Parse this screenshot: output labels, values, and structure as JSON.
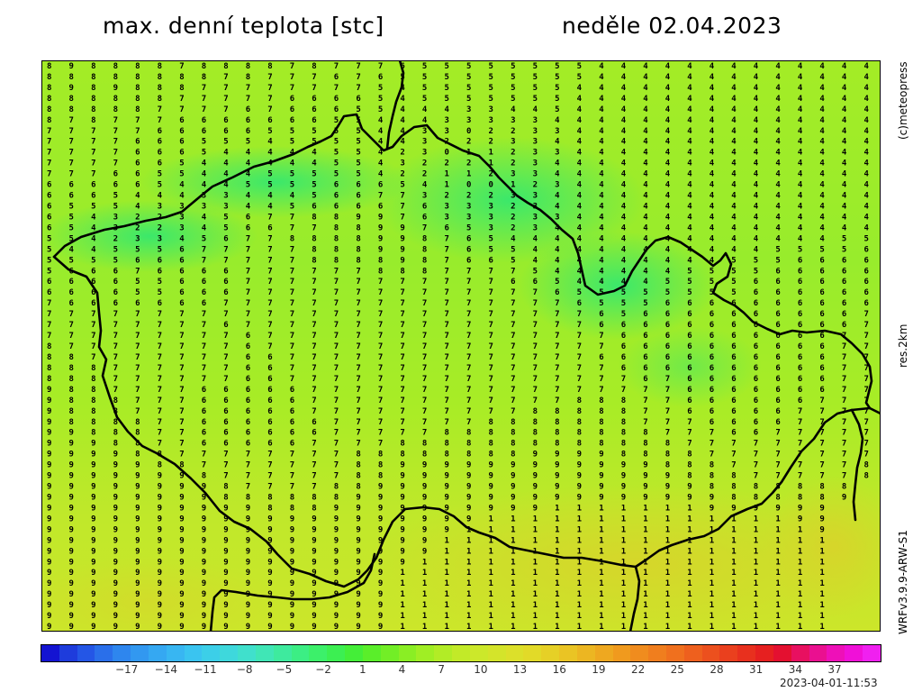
{
  "header": {
    "title": "max. denní teplota [stc]",
    "date": "neděle 02.04.2023"
  },
  "side_labels": {
    "copyright": "(c)meteopress",
    "resolution": "res.2km",
    "model": "WRFv3.9.9-ARW-S1"
  },
  "footer": {
    "timestamp": "2023-04-01-11:53"
  },
  "colorbar": {
    "cells": [
      "#1414d2",
      "#1e3cdc",
      "#2456e6",
      "#2a6fea",
      "#2e86ee",
      "#3298f0",
      "#35a8f2",
      "#38b6f2",
      "#3ac4f0",
      "#3ccfe8",
      "#3ed8dc",
      "#40e0cc",
      "#40e6b6",
      "#3eea9e",
      "#3cee84",
      "#3cf06a",
      "#3cef52",
      "#44ee38",
      "#5aee2a",
      "#72ee26",
      "#8aee24",
      "#a0ee24",
      "#b2ec26",
      "#c2ea28",
      "#cce82a",
      "#d4e42a",
      "#dce02a",
      "#e2da28",
      "#e6d026",
      "#eac424",
      "#ecb622",
      "#eea820",
      "#f09a1e",
      "#f08c1e",
      "#f07e1e",
      "#f0701e",
      "#ee601e",
      "#ec501e",
      "#ea401e",
      "#e8301e",
      "#e62020",
      "#e41030",
      "#e81060",
      "#ea1090",
      "#ee10b8",
      "#f010d8",
      "#f020f0"
    ],
    "tick_labels": [
      "−17",
      "−14",
      "−11",
      "−8",
      "−5",
      "−2",
      "1",
      "4",
      "7",
      "10",
      "13",
      "16",
      "19",
      "22",
      "25",
      "28",
      "31",
      "34",
      "37"
    ],
    "tick_values": [
      -17,
      -14,
      -11,
      -8,
      -5,
      -2,
      1,
      4,
      7,
      10,
      13,
      16,
      19,
      22,
      25,
      28,
      31,
      34,
      37
    ],
    "range": [
      -23.5,
      40.5
    ]
  },
  "map": {
    "value_range": [
      -2,
      13
    ],
    "rows": [
      "89888878888787776555555554444444444444",
      "88888888787776765555555554444444444444",
      "89898887777777754555555544444444444444",
      "88888877777666654555555544444444444444",
      "88888777767666554443344544444444444444",
      "87877766666665544433333444444444444444",
      "77777666665555544330223344444444444444",
      "77776665554555544322233444444444444444",
      "77776665444445542301123344444444444444",
      "77776654444445543222123444444444444444",
      "77766554445555542211233444444444444444",
      "66666544455556665410012344444444444444",
      "66654443344456677322233444444444444444",
      "65554333344566667633323444444444444444",
      "65432234567788997633323344444444444444",
      "65432234566778899765323444444444444444",
      "55423345677888899876544444444444444455",
      "54455567777788899876554444444444455556",
      "55556667777788889876654444444445556666",
      "56667666677777788877775444444555566666",
      "66665566677777777777766544445555666666",
      "66665566677777777777777655555555666666",
      "76666666777777777777777765556666666666",
      "77777777777777777777777776566666666667",
      "77777777677777777777777776666666666667",
      "77777777767777777777777777666666666677",
      "87777777767777777777777777666666666677",
      "88777777766777777777777776666666666677",
      "88877777766777777777777777666666666677",
      "88877777766777777777777777767666666677",
      "98877776666677777777777777777666666677",
      "98887776666677777777777788877666666777",
      "98887776666677777777778888877666667777",
      "98888776666667777777888888877766667777",
      "99888776666667777788888888887776677777",
      "99988776666677778888888888888777777777",
      "99998877777777888888889999888877777777",
      "99999887777777889999999999998887777778",
      "99999998777777889999999999999888777778",
      "9999999987777889999999999999998888888",
      "9999999988888899999999999999999888889",
      "999999999988899999999991111111999999",
      "999999999999999999991111111111111199",
      "999999999999999999911111111111111119",
      "999999999999999999111111111111111111",
      "999999999999999999111111111111111111",
      "999999999999999991111111111111111111",
      "999999999999999911111111111111111111",
      "999999999999999911111111111111111111",
      "999999999999999911111111111111111111",
      "999999999999999911111111111111111111",
      "999999999999999911111111111111111111",
      "999999999999999911111111111111111111"
    ]
  }
}
